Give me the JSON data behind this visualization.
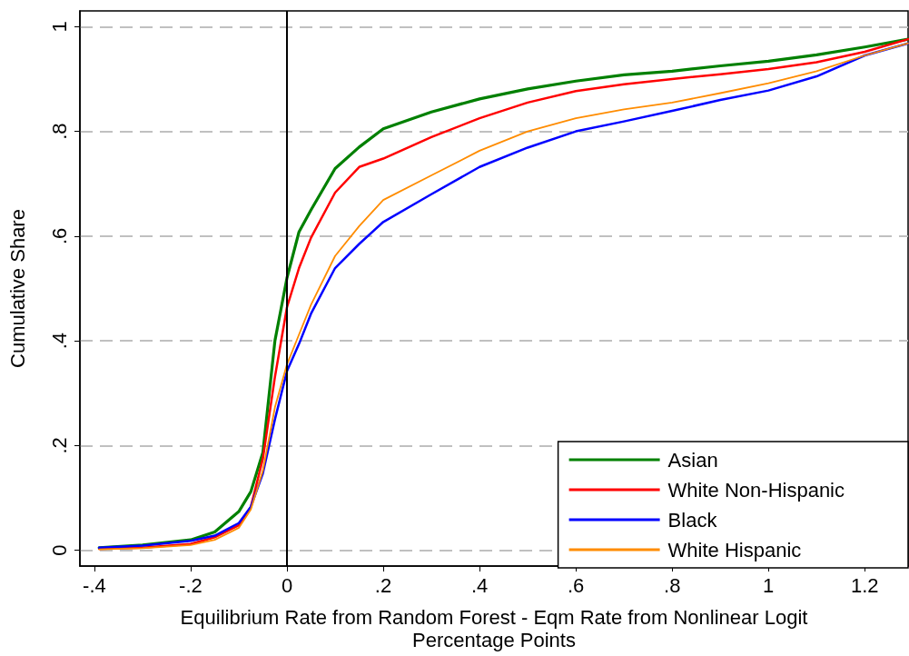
{
  "chart_data": {
    "type": "line",
    "xlabel": "Equilibrium Rate from Random Forest - Eqm Rate from Nonlinear Logit\nPercentage Points",
    "ylabel": "Cumulative Share",
    "x": [
      -0.39,
      -0.3,
      -0.2,
      -0.15,
      -0.1,
      -0.075,
      -0.05,
      -0.025,
      0,
      0.025,
      0.05,
      0.1,
      0.15,
      0.2,
      0.3,
      0.4,
      0.5,
      0.6,
      0.7,
      0.8,
      0.9,
      1.0,
      1.1,
      1.2,
      1.29
    ],
    "series": [
      {
        "name": "Asian",
        "color": "#008000",
        "values": [
          0.005,
          0.01,
          0.02,
          0.035,
          0.074,
          0.112,
          0.187,
          0.4,
          0.52,
          0.608,
          0.65,
          0.729,
          0.77,
          0.805,
          0.837,
          0.862,
          0.881,
          0.896,
          0.908,
          0.915,
          0.925,
          0.934,
          0.946,
          0.961,
          0.976
        ]
      },
      {
        "name": "White Non-Hispanic",
        "color": "#ff0000",
        "values": [
          0.003,
          0.005,
          0.012,
          0.025,
          0.048,
          0.083,
          0.175,
          0.331,
          0.464,
          0.539,
          0.597,
          0.683,
          0.732,
          0.748,
          0.789,
          0.825,
          0.855,
          0.877,
          0.89,
          0.9,
          0.909,
          0.919,
          0.932,
          0.952,
          0.976
        ]
      },
      {
        "name": "Black",
        "color": "#0000ff",
        "values": [
          0.005,
          0.009,
          0.018,
          0.028,
          0.052,
          0.083,
          0.147,
          0.25,
          0.342,
          0.394,
          0.452,
          0.539,
          0.585,
          0.627,
          0.68,
          0.732,
          0.769,
          0.8,
          0.819,
          0.839,
          0.86,
          0.878,
          0.905,
          0.945,
          0.968
        ]
      },
      {
        "name": "White Hispanic",
        "color": "#ff8c00",
        "values": [
          0.002,
          0.004,
          0.01,
          0.02,
          0.043,
          0.078,
          0.152,
          0.273,
          0.355,
          0.412,
          0.469,
          0.562,
          0.619,
          0.669,
          0.716,
          0.763,
          0.8,
          0.825,
          0.842,
          0.855,
          0.873,
          0.892,
          0.915,
          0.945,
          0.968
        ]
      }
    ],
    "xlim": [
      -0.43,
      1.29
    ],
    "xticks": [
      {
        "value": -0.4,
        "label": "-.4"
      },
      {
        "value": -0.2,
        "label": "-.2"
      },
      0,
      {
        "value": 0.2,
        "label": ".2"
      },
      {
        "value": 0.4,
        "label": ".4"
      },
      {
        "value": 0.6,
        "label": ".6"
      },
      {
        "value": 0.8,
        "label": ".8"
      },
      1,
      {
        "value": 1.2,
        "label": "1.2"
      }
    ],
    "ylim": [
      -0.03,
      1.03
    ],
    "yticks": [
      0,
      {
        "value": 0.2,
        "label": ".2"
      },
      {
        "value": 0.4,
        "label": ".4"
      },
      {
        "value": 0.6,
        "label": ".6"
      },
      {
        "value": 0.8,
        "label": ".8"
      },
      1
    ],
    "grid": "y",
    "legend": "bottom right",
    "marker": "none",
    "line_style": "solid",
    "ref_lines": [
      {
        "axis": "x",
        "value": 0,
        "color": "#000000"
      }
    ]
  }
}
